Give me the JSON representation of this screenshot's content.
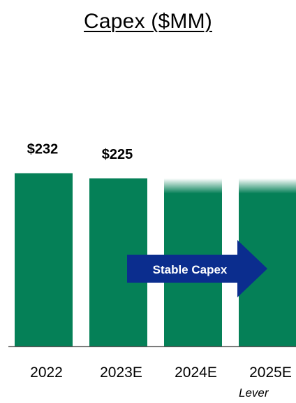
{
  "chart_data": {
    "type": "bar",
    "title": "Capex ($MM)",
    "categories": [
      "2022",
      "2023E",
      "2024E",
      "2025E"
    ],
    "values": [
      232,
      225,
      225,
      225
    ],
    "data_labels": [
      "$232",
      "$225",
      "",
      ""
    ],
    "estimated": [
      false,
      false,
      true,
      true
    ],
    "ylim": [
      0,
      300
    ],
    "xlabel": "",
    "ylabel": "",
    "grid": false,
    "annotation": {
      "text": "Stable Capex"
    },
    "footnote": "Lever"
  },
  "colors": {
    "bar": "#058057",
    "bar_fade_top": "#ffffff",
    "arrow": "#0b2d8e",
    "arrow_text": "#ffffff",
    "axis": "#555555"
  }
}
